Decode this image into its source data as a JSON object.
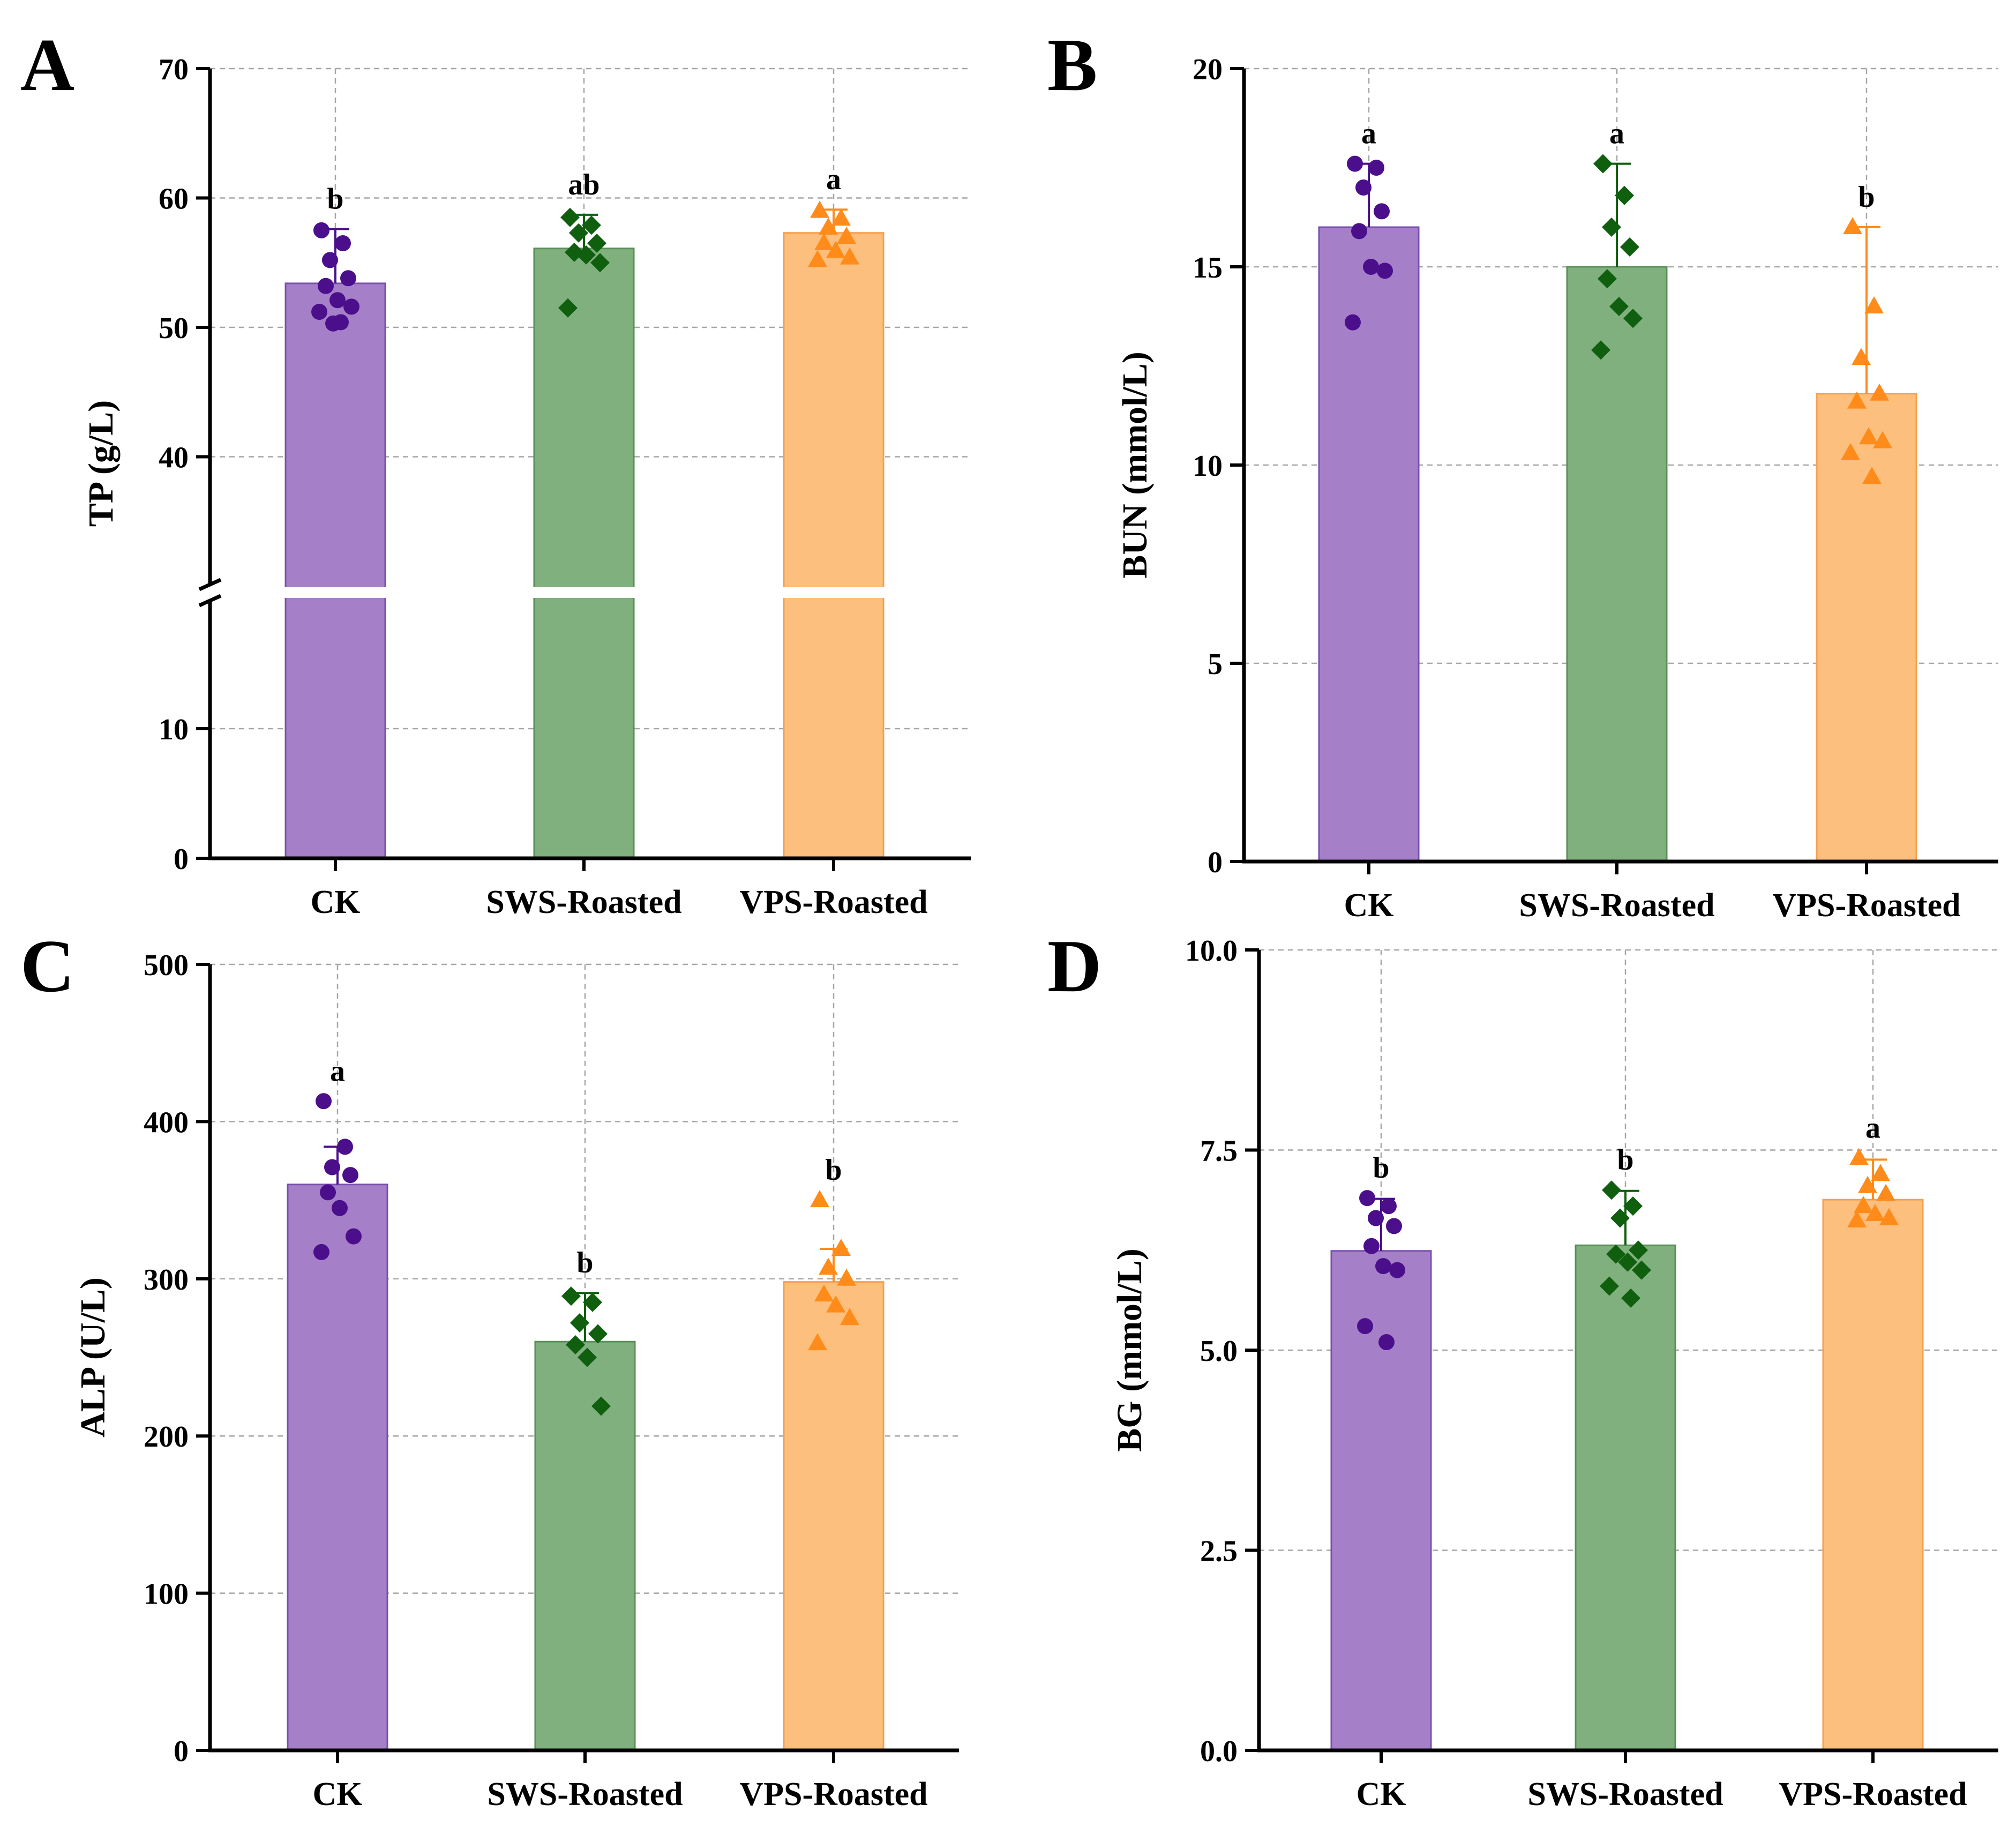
{
  "groups": [
    "CK",
    "SWS-Roasted",
    "VPS-Roasted"
  ],
  "colors": {
    "ck_bar": "#a580c8",
    "ck_edge": "#7a4fb0",
    "ck_point": "#4b0f8c",
    "sws_bar": "#80b07e",
    "sws_edge": "#5a8f58",
    "sws_point": "#0f5f0f",
    "vps_bar": "#fdbf7d",
    "vps_edge": "#f5a04f",
    "vps_point": "#ff8c1a"
  },
  "markers": [
    "circle",
    "diamond",
    "triangle"
  ],
  "chart_data": [
    {
      "panel": "A",
      "type": "bar",
      "ylabel": "TP (g/L)",
      "ylim": [
        0,
        70
      ],
      "axis_break": [
        20,
        30
      ],
      "yticks": [
        "0",
        "10",
        "40",
        "50",
        "60",
        "70"
      ],
      "ytick_values": [
        0,
        10,
        40,
        50,
        60,
        70
      ],
      "categories": [
        "CK",
        "SWS-Roasted",
        "VPS-Roasted"
      ],
      "values": [
        53.4,
        56.1,
        57.3
      ],
      "errors": [
        4.2,
        2.6,
        1.8
      ],
      "significance": [
        "b",
        "ab",
        "a"
      ],
      "points": [
        [
          57.5,
          56.5,
          55.2,
          53.8,
          53.2,
          52.1,
          51.6,
          51.2,
          50.4,
          50.3
        ],
        [
          58.5,
          57.9,
          57.3,
          56.5,
          55.8,
          55.6,
          55.0,
          51.5
        ],
        [
          59.0,
          58.4,
          57.7,
          57.0,
          56.5,
          55.9,
          55.4,
          55.2
        ]
      ]
    },
    {
      "panel": "B",
      "type": "bar",
      "ylabel": "BUN (mmol/L)",
      "ylim": [
        0,
        20
      ],
      "yticks": [
        "0",
        "5",
        "10",
        "15",
        "20"
      ],
      "ytick_values": [
        0,
        5,
        10,
        15,
        20
      ],
      "categories": [
        "CK",
        "SWS-Roasted",
        "VPS-Roasted"
      ],
      "values": [
        16.0,
        15.0,
        11.8
      ],
      "errors": [
        1.6,
        2.6,
        4.2
      ],
      "significance": [
        "a",
        "a",
        "b"
      ],
      "points": [
        [
          17.6,
          17.5,
          17.0,
          16.4,
          15.9,
          15.0,
          14.9,
          13.6
        ],
        [
          17.6,
          16.8,
          16.0,
          15.5,
          14.7,
          14.0,
          13.7,
          12.9
        ],
        [
          16.0,
          14.0,
          12.7,
          11.8,
          11.6,
          10.7,
          10.6,
          10.3,
          9.7
        ]
      ]
    },
    {
      "panel": "C",
      "type": "bar",
      "ylabel": "ALP (U/L)",
      "ylim": [
        0,
        500
      ],
      "yticks": [
        "0",
        "100",
        "200",
        "300",
        "400",
        "500"
      ],
      "ytick_values": [
        0,
        100,
        200,
        300,
        400,
        500
      ],
      "categories": [
        "CK",
        "SWS-Roasted",
        "VPS-Roasted"
      ],
      "values": [
        360,
        260,
        298
      ],
      "errors": [
        24,
        31,
        21
      ],
      "significance": [
        "a",
        "b",
        "b"
      ],
      "points": [
        [
          413,
          384,
          371,
          366,
          355,
          345,
          327,
          317
        ],
        [
          289,
          285,
          272,
          265,
          258,
          250,
          219
        ],
        [
          350,
          319,
          307,
          300,
          290,
          283,
          275,
          259
        ]
      ]
    },
    {
      "panel": "D",
      "type": "bar",
      "ylabel": "BG (mmol/L)",
      "ylim": [
        0,
        10
      ],
      "yticks": [
        "0.0",
        "2.5",
        "5.0",
        "7.5",
        "10.0"
      ],
      "ytick_values": [
        0,
        2.5,
        5.0,
        7.5,
        10.0
      ],
      "categories": [
        "CK",
        "SWS-Roasted",
        "VPS-Roasted"
      ],
      "values": [
        6.24,
        6.31,
        6.88
      ],
      "errors": [
        0.65,
        0.68,
        0.5
      ],
      "significance": [
        "b",
        "b",
        "a"
      ],
      "points": [
        [
          6.9,
          6.8,
          6.65,
          6.55,
          6.3,
          6.05,
          6.0,
          5.3,
          5.1
        ],
        [
          7.0,
          6.8,
          6.65,
          6.25,
          6.2,
          6.1,
          6.0,
          5.8,
          5.65
        ],
        [
          7.4,
          7.2,
          7.05,
          6.95,
          6.8,
          6.7,
          6.65,
          6.62
        ]
      ]
    }
  ]
}
